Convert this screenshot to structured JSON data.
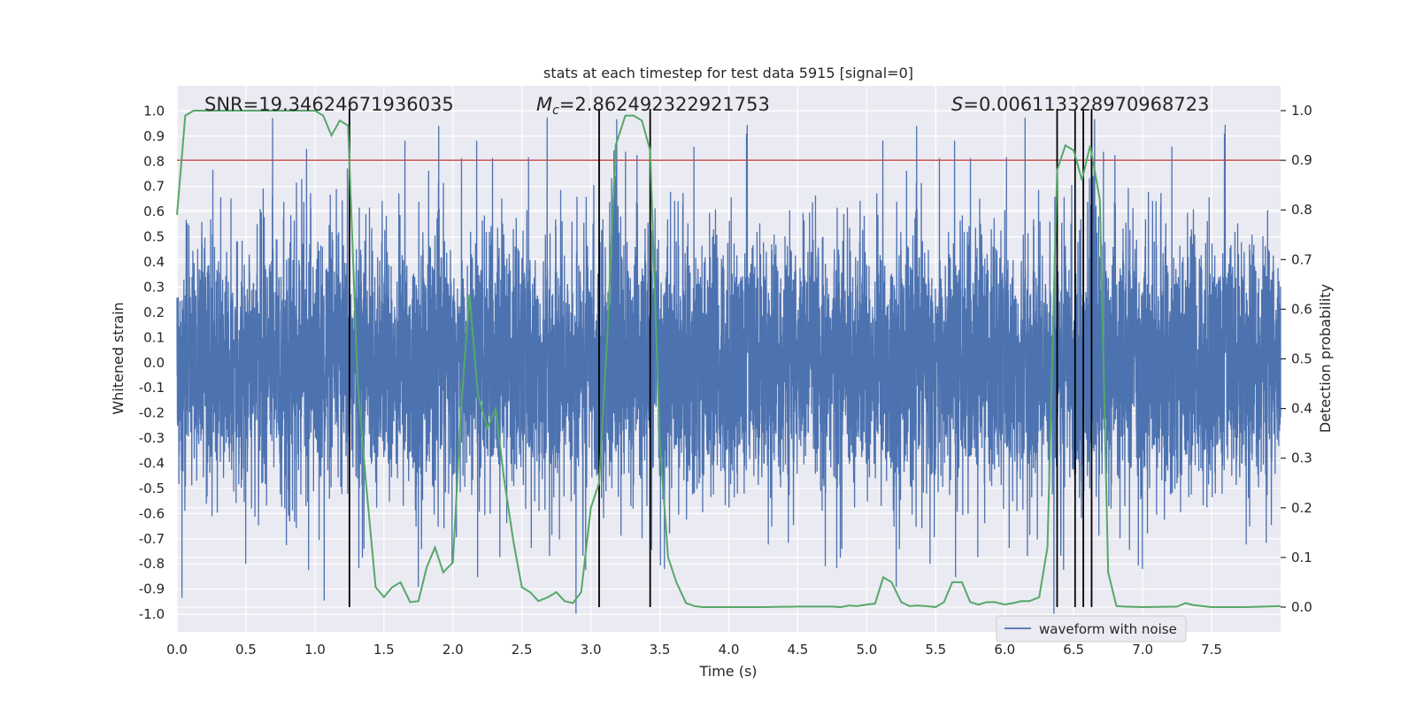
{
  "chart_data": {
    "type": "line",
    "title": "stats at each timestep for test data 5915 [signal=0]",
    "xlabel": "Time (s)",
    "ylabel_left": "Whitened strain",
    "ylabel_right": "Detection probability",
    "xlim": [
      0.0,
      8.0
    ],
    "ylim_left": [
      -1.07,
      1.1
    ],
    "ylim_right": [
      -0.05,
      1.05
    ],
    "x_ticks": [
      "0.0",
      "0.5",
      "1.0",
      "1.5",
      "2.0",
      "2.5",
      "3.0",
      "3.5",
      "4.0",
      "4.5",
      "5.0",
      "5.5",
      "6.0",
      "6.5",
      "7.0",
      "7.5"
    ],
    "y_ticks_left": [
      "1.0",
      "0.9",
      "0.8",
      "0.7",
      "0.6",
      "0.5",
      "0.4",
      "0.3",
      "0.2",
      "0.1",
      "0.0",
      "-0.1",
      "-0.2",
      "-0.3",
      "-0.4",
      "-0.5",
      "-0.6",
      "-0.7",
      "-0.8",
      "-0.9",
      "-1.0"
    ],
    "y_ticks_right": [
      "1.0",
      "0.9",
      "0.8",
      "0.7",
      "0.6",
      "0.5",
      "0.4",
      "0.3",
      "0.2",
      "0.1",
      "0.0"
    ],
    "grid": true,
    "legend_position": "bottom-right",
    "threshold": {
      "axis": "right",
      "value": 0.9,
      "color": "#c44e52"
    },
    "vertical_lines": [
      1.25,
      3.06,
      3.43,
      6.38,
      6.51,
      6.57,
      6.63
    ],
    "annotations": {
      "snr": "SNR=19.34624671936035",
      "mc_symbol": "M",
      "mc_sub": "c",
      "mc_value": "=2.862492322921753",
      "s_symbol": "S",
      "s_value": "=0.006113328970968723"
    },
    "series": [
      {
        "name": "waveform with noise",
        "axis": "left",
        "color": "#4c72b0",
        "kind": "noise",
        "n_samples": 8000,
        "core_abs": 0.3,
        "typical_peak": 0.55,
        "max_abs": 1.0
      },
      {
        "axis": "right",
        "color": "#55a868",
        "x": [
          0.0,
          0.06,
          0.12,
          0.25,
          0.5,
          0.75,
          1.0,
          1.06,
          1.12,
          1.18,
          1.24,
          1.31,
          1.37,
          1.44,
          1.5,
          1.56,
          1.62,
          1.69,
          1.75,
          1.81,
          1.87,
          1.93,
          2.0,
          2.06,
          2.12,
          2.18,
          2.25,
          2.31,
          2.37,
          2.44,
          2.5,
          2.56,
          2.62,
          2.69,
          2.75,
          2.81,
          2.87,
          2.93,
          3.0,
          3.06,
          3.12,
          3.18,
          3.25,
          3.31,
          3.37,
          3.43,
          3.5,
          3.56,
          3.62,
          3.69,
          3.75,
          3.81,
          4.0,
          4.25,
          4.5,
          4.75,
          4.81,
          4.87,
          4.93,
          5.0,
          5.06,
          5.12,
          5.18,
          5.25,
          5.31,
          5.37,
          5.43,
          5.5,
          5.56,
          5.62,
          5.69,
          5.75,
          5.81,
          5.87,
          5.93,
          6.0,
          6.06,
          6.12,
          6.18,
          6.25,
          6.31,
          6.38,
          6.44,
          6.5,
          6.56,
          6.62,
          6.69,
          6.75,
          6.81,
          6.87,
          7.0,
          7.25,
          7.31,
          7.37,
          7.5,
          7.75,
          8.0
        ],
        "y": [
          0.79,
          0.99,
          1.0,
          1.0,
          1.0,
          1.0,
          1.0,
          0.99,
          0.95,
          0.98,
          0.97,
          0.45,
          0.25,
          0.04,
          0.02,
          0.04,
          0.05,
          0.01,
          0.012,
          0.08,
          0.12,
          0.07,
          0.09,
          0.4,
          0.63,
          0.43,
          0.36,
          0.4,
          0.26,
          0.13,
          0.04,
          0.03,
          0.012,
          0.02,
          0.03,
          0.012,
          0.008,
          0.03,
          0.2,
          0.25,
          0.55,
          0.93,
          0.99,
          0.99,
          0.98,
          0.92,
          0.33,
          0.1,
          0.05,
          0.008,
          0.002,
          0.0,
          0.0,
          0.0,
          0.001,
          0.001,
          0.0,
          0.003,
          0.002,
          0.005,
          0.007,
          0.06,
          0.05,
          0.01,
          0.002,
          0.003,
          0.002,
          0.0,
          0.01,
          0.05,
          0.05,
          0.01,
          0.005,
          0.01,
          0.01,
          0.005,
          0.008,
          0.012,
          0.012,
          0.02,
          0.12,
          0.88,
          0.93,
          0.92,
          0.86,
          0.93,
          0.82,
          0.07,
          0.002,
          0.001,
          0.0,
          0.001,
          0.008,
          0.004,
          0.0,
          0.0,
          0.002
        ]
      }
    ]
  }
}
